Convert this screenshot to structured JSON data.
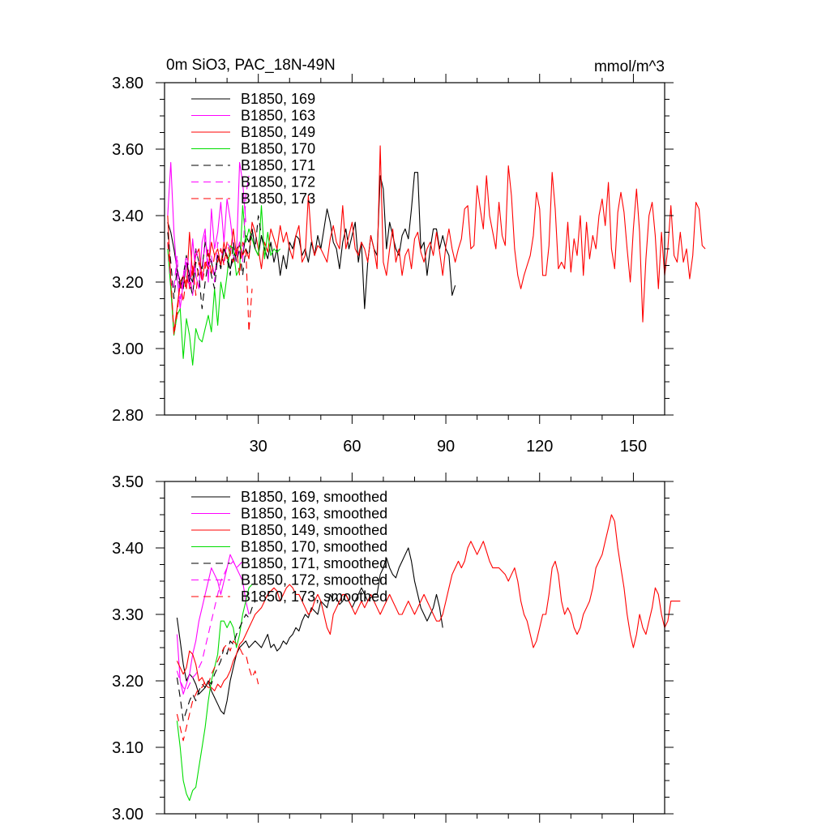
{
  "chart_data": [
    {
      "type": "line",
      "title": "0m SiO3, PAC_18N-49N",
      "units": "mmol/m^3",
      "xlim": [
        0,
        160
      ],
      "ylim": [
        2.8,
        3.8
      ],
      "x_ticks": [
        30,
        60,
        90,
        120,
        150
      ],
      "y_ticks": [
        2.8,
        3.0,
        3.2,
        3.4,
        3.6,
        3.8
      ],
      "y_tick_labels": [
        "2.80",
        "3.00",
        "3.20",
        "3.40",
        "3.60",
        "3.80"
      ],
      "legend": [
        "B1850, 169",
        "B1850, 163",
        "B1850, 149",
        "B1850, 170",
        "B1850, 171",
        "B1850, 172",
        "B1850, 173"
      ],
      "series": [
        {
          "name": "B1850, 169",
          "color": "#000000",
          "dash": false,
          "x_start": 1,
          "values": [
            3.38,
            3.35,
            3.3,
            3.24,
            3.2,
            3.18,
            3.26,
            3.22,
            3.2,
            3.3,
            3.26,
            3.24,
            3.32,
            3.28,
            3.26,
            3.22,
            3.28,
            3.25,
            3.3,
            3.28,
            3.24,
            3.27,
            3.3,
            3.31,
            3.28,
            3.34,
            3.32,
            3.36,
            3.3,
            3.28,
            3.34,
            3.3,
            3.27,
            3.32,
            3.26,
            3.3,
            3.22,
            3.28,
            3.24,
            3.32,
            3.3,
            3.34,
            3.33,
            3.28,
            3.3,
            3.26,
            3.32,
            3.28,
            3.34,
            3.3,
            3.36,
            3.42,
            3.38,
            3.32,
            3.3,
            3.24,
            3.32,
            3.36,
            3.3,
            3.34,
            3.38,
            3.26,
            3.32,
            3.12,
            3.26,
            3.34,
            3.3,
            3.28,
            3.52,
            3.48,
            3.3,
            3.38,
            3.34,
            3.3,
            3.28,
            3.34,
            3.36,
            3.33,
            3.42,
            3.53,
            3.53,
            3.3,
            3.32,
            3.22,
            3.3,
            3.36,
            3.36,
            3.3,
            3.34,
            3.3,
            3.28,
            3.16,
            3.19
          ]
        },
        {
          "name": "B1850, 163",
          "color": "#ff00ff",
          "dash": false,
          "x_start": 1,
          "values": [
            3.4,
            3.56,
            3.35,
            3.22,
            3.12,
            3.2,
            3.26,
            3.18,
            3.33,
            3.22,
            3.18,
            3.32,
            3.36,
            3.2,
            3.42,
            3.3,
            3.35,
            3.44,
            3.32,
            3.45,
            3.39,
            3.31,
            3.28,
            3.56,
            3.5,
            3.38
          ]
        },
        {
          "name": "B1850, 149",
          "color": "#ff0000",
          "dash": false,
          "x_start": 1,
          "values": [
            3.4,
            3.2,
            3.05,
            3.12,
            3.2,
            3.22,
            3.18,
            3.35,
            3.22,
            3.28,
            3.3,
            3.21,
            3.26,
            3.24,
            3.32,
            3.28,
            3.3,
            3.25,
            3.32,
            3.27,
            3.28,
            3.36,
            3.28,
            3.32,
            3.28,
            3.3,
            3.27,
            3.38,
            3.35,
            3.3,
            3.24,
            3.32,
            3.29,
            3.36,
            3.33,
            3.3,
            3.37,
            3.32,
            3.35,
            3.3,
            3.27,
            3.34,
            3.37,
            3.26,
            3.28,
            3.46,
            3.33,
            3.28,
            3.31,
            3.3,
            3.28,
            3.26,
            3.33,
            3.37,
            3.32,
            3.3,
            3.43,
            3.3,
            3.34,
            3.38,
            3.3,
            3.28,
            3.32,
            3.3,
            3.26,
            3.34,
            3.3,
            3.24,
            3.61,
            3.26,
            3.22,
            3.3,
            3.36,
            3.26,
            3.3,
            3.22,
            3.28,
            3.3,
            3.24,
            3.33,
            3.35,
            3.29,
            3.26,
            3.3,
            3.32,
            3.28,
            3.35,
            3.29,
            3.22,
            3.31,
            3.36,
            3.3,
            3.26,
            3.3,
            3.33,
            3.42,
            3.43,
            3.3,
            3.31,
            3.49,
            3.42,
            3.36,
            3.52,
            3.4,
            3.35,
            3.3,
            3.44,
            3.34,
            3.31,
            3.55,
            3.46,
            3.3,
            3.22,
            3.18,
            3.22,
            3.25,
            3.28,
            3.34,
            3.47,
            3.42,
            3.22,
            3.22,
            3.31,
            3.53,
            3.42,
            3.24,
            3.26,
            3.24,
            3.38,
            3.23,
            3.33,
            3.28,
            3.4,
            3.22,
            3.38,
            3.27,
            3.34,
            3.3,
            3.4,
            3.45,
            3.37,
            3.5,
            3.3,
            3.24,
            3.41,
            3.47,
            3.41,
            3.3,
            3.2,
            3.36,
            3.48,
            3.35,
            3.08,
            3.27,
            3.4,
            3.44,
            3.34,
            3.18,
            3.35,
            3.22,
            3.3,
            3.43,
            3.28,
            3.26,
            3.35,
            3.26,
            3.3,
            3.21,
            3.28,
            3.44,
            3.42,
            3.31,
            3.3
          ]
        },
        {
          "name": "B1850, 170",
          "color": "#00dd00",
          "dash": false,
          "x_start": 1,
          "values": [
            3.3,
            3.18,
            3.04,
            3.1,
            3.12,
            2.97,
            3.09,
            3.04,
            2.95,
            3.06,
            3.03,
            3.02,
            3.06,
            3.1,
            3.05,
            3.18,
            3.07,
            3.2,
            3.15,
            3.22,
            3.31,
            3.3,
            3.22,
            3.24,
            3.43,
            3.32,
            3.36,
            3.33,
            3.3,
            3.28,
            3.43,
            3.27,
            3.35,
            3.28,
            3.3,
            3.29,
            3.3
          ]
        },
        {
          "name": "B1850, 171",
          "color": "#000000",
          "dash": true,
          "x_start": 1,
          "values": [
            3.35,
            3.26,
            3.15,
            3.24,
            3.18,
            3.22,
            3.28,
            3.2,
            3.16,
            3.26,
            3.22,
            3.12,
            3.2,
            3.26,
            3.22,
            3.18,
            3.28,
            3.24,
            3.3,
            3.27,
            3.22,
            3.32,
            3.26,
            3.3,
            3.22,
            3.3,
            3.28,
            3.36,
            3.3,
            3.4,
            3.34,
            3.3
          ]
        },
        {
          "name": "B1850, 172",
          "color": "#ff00ff",
          "dash": true,
          "x_start": 1,
          "values": [
            3.32,
            3.2,
            3.18,
            3.28,
            3.15,
            3.22,
            3.28,
            3.24,
            3.16,
            3.3,
            3.26,
            3.2,
            3.35,
            3.24,
            3.28,
            3.2,
            3.32,
            3.3,
            3.26,
            3.32,
            3.3,
            3.28,
            3.26,
            3.32,
            3.26,
            3.46,
            3.52
          ]
        },
        {
          "name": "B1850, 173",
          "color": "#ff0000",
          "dash": true,
          "x_start": 1,
          "values": [
            3.32,
            3.22,
            3.04,
            3.1,
            3.2,
            3.14,
            3.22,
            3.18,
            3.25,
            3.16,
            3.26,
            3.2,
            3.24,
            3.3,
            3.22,
            3.28,
            3.26,
            3.3,
            3.25,
            3.32,
            3.28,
            3.26,
            3.3,
            3.22,
            3.32,
            3.3,
            3.05,
            3.18
          ]
        }
      ]
    },
    {
      "type": "line",
      "title": "",
      "units": "",
      "xlim": [
        0,
        160
      ],
      "ylim": [
        3.0,
        3.5
      ],
      "x_ticks": [
        30,
        60,
        90,
        120,
        150
      ],
      "y_ticks": [
        3.0,
        3.1,
        3.2,
        3.3,
        3.4,
        3.5
      ],
      "y_tick_labels": [
        "3.00",
        "3.10",
        "3.20",
        "3.30",
        "3.40",
        "3.50"
      ],
      "legend": [
        "B1850, 169, smoothed",
        "B1850, 163, smoothed",
        "B1850, 149, smoothed",
        "B1850, 170, smoothed",
        "B1850, 171, smoothed",
        "B1850, 172, smoothed",
        "B1850, 173, smoothed"
      ],
      "series": [
        {
          "name": "B1850, 169, smoothed",
          "color": "#000000",
          "dash": false,
          "x_start": 4,
          "values": [
            3.295,
            3.26,
            3.225,
            3.2,
            3.21,
            3.205,
            3.195,
            3.18,
            3.185,
            3.19,
            3.2,
            3.185,
            3.175,
            3.165,
            3.155,
            3.15,
            3.17,
            3.2,
            3.22,
            3.24,
            3.25,
            3.255,
            3.26,
            3.25,
            3.255,
            3.26,
            3.255,
            3.25,
            3.26,
            3.27,
            3.25,
            3.255,
            3.245,
            3.25,
            3.26,
            3.255,
            3.265,
            3.27,
            3.28,
            3.275,
            3.29,
            3.3,
            3.295,
            3.31,
            3.305,
            3.3,
            3.32,
            3.315,
            3.31,
            3.33,
            3.32,
            3.325,
            3.315,
            3.32,
            3.33,
            3.32,
            3.31,
            3.32,
            3.33,
            3.34,
            3.33,
            3.32,
            3.325,
            3.33,
            3.33,
            3.36,
            3.37,
            3.385,
            3.37,
            3.36,
            3.355,
            3.37,
            3.38,
            3.39,
            3.4,
            3.38,
            3.35,
            3.33,
            3.31,
            3.3,
            3.29,
            3.3,
            3.31,
            3.33,
            3.31,
            3.28
          ]
        },
        {
          "name": "B1850, 163, smoothed",
          "color": "#ff00ff",
          "dash": false,
          "x_start": 4,
          "values": [
            3.27,
            3.2,
            3.18,
            3.195,
            3.21,
            3.24,
            3.26,
            3.29,
            3.31,
            3.33,
            3.35,
            3.37,
            3.36,
            3.35,
            3.33,
            3.35,
            3.37,
            3.39,
            3.38,
            3.37,
            3.36,
            3.35,
            3.32,
            3.3
          ]
        },
        {
          "name": "B1850, 149, smoothed",
          "color": "#ff0000",
          "dash": false,
          "x_start": 4,
          "values": [
            3.23,
            3.22,
            3.21,
            3.22,
            3.245,
            3.24,
            3.225,
            3.2,
            3.205,
            3.195,
            3.19,
            3.19,
            3.185,
            3.195,
            3.19,
            3.2,
            3.205,
            3.215,
            3.23,
            3.24,
            3.255,
            3.26,
            3.27,
            3.28,
            3.29,
            3.3,
            3.305,
            3.31,
            3.32,
            3.33,
            3.335,
            3.34,
            3.335,
            3.32,
            3.33,
            3.34,
            3.345,
            3.34,
            3.33,
            3.33,
            3.32,
            3.31,
            3.3,
            3.305,
            3.32,
            3.33,
            3.32,
            3.3,
            3.28,
            3.27,
            3.3,
            3.31,
            3.32,
            3.33,
            3.33,
            3.32,
            3.31,
            3.3,
            3.31,
            3.32,
            3.31,
            3.32,
            3.33,
            3.32,
            3.31,
            3.3,
            3.31,
            3.32,
            3.33,
            3.32,
            3.31,
            3.3,
            3.3,
            3.31,
            3.32,
            3.31,
            3.3,
            3.31,
            3.32,
            3.33,
            3.32,
            3.31,
            3.3,
            3.29,
            3.29,
            3.3,
            3.32,
            3.34,
            3.36,
            3.37,
            3.38,
            3.37,
            3.38,
            3.4,
            3.41,
            3.4,
            3.39,
            3.4,
            3.41,
            3.395,
            3.38,
            3.37,
            3.37,
            3.37,
            3.365,
            3.36,
            3.35,
            3.36,
            3.37,
            3.35,
            3.32,
            3.3,
            3.29,
            3.27,
            3.25,
            3.26,
            3.28,
            3.3,
            3.3,
            3.33,
            3.37,
            3.38,
            3.36,
            3.32,
            3.3,
            3.31,
            3.3,
            3.28,
            3.27,
            3.28,
            3.3,
            3.31,
            3.32,
            3.34,
            3.37,
            3.38,
            3.39,
            3.41,
            3.43,
            3.45,
            3.44,
            3.4,
            3.37,
            3.34,
            3.3,
            3.27,
            3.25,
            3.27,
            3.3,
            3.28,
            3.27,
            3.29,
            3.31,
            3.34,
            3.33,
            3.3,
            3.28,
            3.29,
            3.32,
            3.32,
            3.32,
            3.32
          ]
        },
        {
          "name": "B1850, 170, smoothed",
          "color": "#00dd00",
          "dash": false,
          "x_start": 4,
          "values": [
            3.14,
            3.1,
            3.05,
            3.03,
            3.02,
            3.035,
            3.04,
            3.07,
            3.1,
            3.13,
            3.17,
            3.2,
            3.22,
            3.24,
            3.29,
            3.29,
            3.28,
            3.29,
            3.28,
            3.25,
            3.27,
            3.3,
            3.32,
            3.34,
            3.345
          ]
        },
        {
          "name": "B1850, 171, smoothed",
          "color": "#000000",
          "dash": true,
          "x_start": 4,
          "values": [
            3.205,
            3.175,
            3.14,
            3.155,
            3.17,
            3.18,
            3.17,
            3.185,
            3.195,
            3.19,
            3.2,
            3.195,
            3.21,
            3.22,
            3.23,
            3.25,
            3.24,
            3.26,
            3.255,
            3.27,
            3.28,
            3.29,
            3.3,
            3.295,
            3.31,
            3.32
          ]
        },
        {
          "name": "B1850, 172, smoothed",
          "color": "#ff00ff",
          "dash": true,
          "x_start": 4,
          "values": [
            3.215,
            3.2,
            3.19,
            3.185,
            3.195,
            3.205,
            3.21,
            3.22,
            3.23,
            3.25,
            3.27,
            3.29,
            3.31,
            3.33,
            3.35,
            3.36,
            3.37,
            3.375,
            3.38,
            3.37,
            3.375,
            3.38
          ]
        },
        {
          "name": "B1850, 173, smoothed",
          "color": "#ff0000",
          "dash": true,
          "x_start": 4,
          "values": [
            3.15,
            3.13,
            3.11,
            3.13,
            3.15,
            3.17,
            3.18,
            3.19,
            3.19,
            3.2,
            3.195,
            3.21,
            3.22,
            3.23,
            3.24,
            3.25,
            3.255,
            3.245,
            3.26,
            3.255,
            3.25,
            3.24,
            3.24,
            3.22,
            3.205,
            3.215,
            3.195
          ]
        }
      ]
    }
  ]
}
